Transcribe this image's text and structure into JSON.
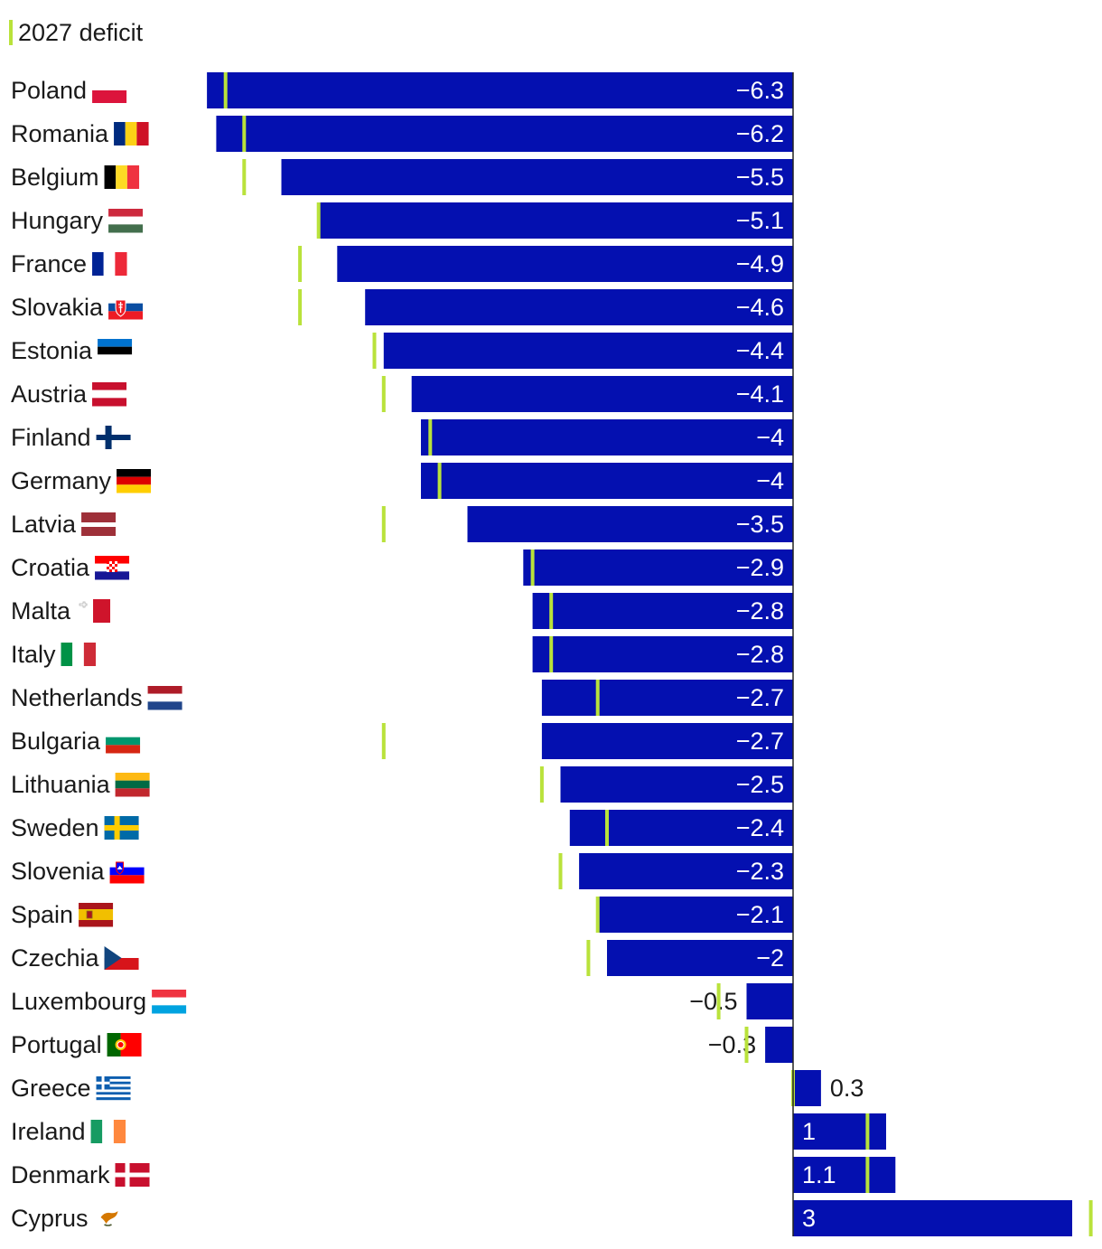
{
  "colors": {
    "bar": "#0410b0",
    "marker": "#b9e23b",
    "axis": "#222222",
    "label_inside": "#ffffff",
    "label_outside": "#1a1a1a"
  },
  "chart_data": {
    "type": "bar",
    "orientation": "horizontal",
    "title": "",
    "legend": [
      {
        "name": "2027 deficit",
        "style": "marker-line"
      }
    ],
    "categories": [
      {
        "name": "Poland",
        "flag": "poland-flag-icon"
      },
      {
        "name": "Romania",
        "flag": "romania-flag-icon"
      },
      {
        "name": "Belgium",
        "flag": "belgium-flag-icon"
      },
      {
        "name": "Hungary",
        "flag": "hungary-flag-icon"
      },
      {
        "name": "France",
        "flag": "france-flag-icon"
      },
      {
        "name": "Slovakia",
        "flag": "slovakia-flag-icon"
      },
      {
        "name": "Estonia",
        "flag": "estonia-flag-icon"
      },
      {
        "name": "Austria",
        "flag": "austria-flag-icon"
      },
      {
        "name": "Finland",
        "flag": "finland-flag-icon"
      },
      {
        "name": "Germany",
        "flag": "germany-flag-icon"
      },
      {
        "name": "Latvia",
        "flag": "latvia-flag-icon"
      },
      {
        "name": "Croatia",
        "flag": "croatia-flag-icon"
      },
      {
        "name": "Malta",
        "flag": "malta-flag-icon"
      },
      {
        "name": "Italy",
        "flag": "italy-flag-icon"
      },
      {
        "name": "Netherlands",
        "flag": "netherlands-flag-icon"
      },
      {
        "name": "Bulgaria",
        "flag": "bulgaria-flag-icon"
      },
      {
        "name": "Lithuania",
        "flag": "lithuania-flag-icon"
      },
      {
        "name": "Sweden",
        "flag": "sweden-flag-icon"
      },
      {
        "name": "Slovenia",
        "flag": "slovenia-flag-icon"
      },
      {
        "name": "Spain",
        "flag": "spain-flag-icon"
      },
      {
        "name": "Czechia",
        "flag": "czechia-flag-icon"
      },
      {
        "name": "Luxembourg",
        "flag": "luxembourg-flag-icon"
      },
      {
        "name": "Portugal",
        "flag": "portugal-flag-icon"
      },
      {
        "name": "Greece",
        "flag": "greece-flag-icon"
      },
      {
        "name": "Ireland",
        "flag": "ireland-flag-icon"
      },
      {
        "name": "Denmark",
        "flag": "denmark-flag-icon"
      },
      {
        "name": "Cyprus",
        "flag": "cyprus-flag-icon"
      }
    ],
    "series": [
      {
        "name": "deficit",
        "type": "bar",
        "values": [
          -6.3,
          -6.2,
          -5.5,
          -5.1,
          -4.9,
          -4.6,
          -4.4,
          -4.1,
          -4,
          -4,
          -3.5,
          -2.9,
          -2.8,
          -2.8,
          -2.7,
          -2.7,
          -2.5,
          -2.4,
          -2.3,
          -2.1,
          -2,
          -0.5,
          -0.3,
          0.3,
          1,
          1.1,
          3
        ],
        "labels": [
          "−6.3",
          "−6.2",
          "−5.5",
          "−5.1",
          "−4.9",
          "−4.6",
          "−4.4",
          "−4.1",
          "−4",
          "−4",
          "−3.5",
          "−2.9",
          "−2.8",
          "−2.8",
          "−2.7",
          "−2.7",
          "−2.5",
          "−2.4",
          "−2.3",
          "−2.1",
          "−2",
          "−0.5",
          "−0.3",
          "0.3",
          "1",
          "1.1",
          "3"
        ]
      },
      {
        "name": "2027 deficit",
        "type": "marker",
        "values": [
          -6.1,
          -5.9,
          -5.9,
          -5.1,
          -5.3,
          -5.3,
          -4.5,
          -4.4,
          -3.9,
          -3.8,
          -4.4,
          -2.8,
          -2.6,
          -2.6,
          -2.1,
          -4.4,
          -2.7,
          -2.0,
          -2.5,
          -2.1,
          -2.2,
          -0.8,
          -0.5,
          0.0,
          0.8,
          0.8,
          3.2
        ]
      }
    ],
    "xlim": [
      -6.5,
      3.25
    ]
  }
}
